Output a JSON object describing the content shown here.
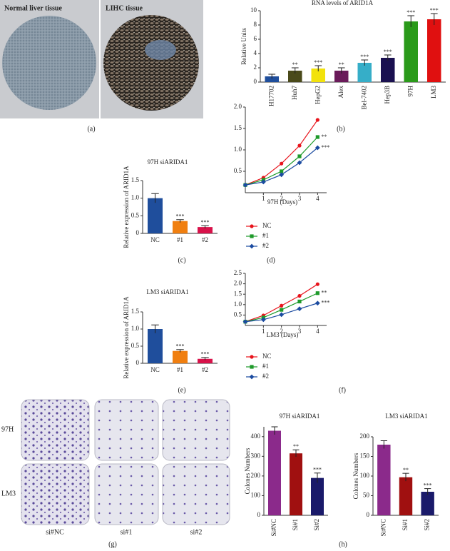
{
  "images": {
    "normal": "Normal liver tissue",
    "tumor": "LIHC tissue",
    "rows": [
      "97H",
      "LM3"
    ],
    "columns": [
      "si#NC",
      "si#1",
      "si#2"
    ]
  },
  "panel_labels": [
    "(a)",
    "(b)",
    "(c)",
    "(d)",
    "(e)",
    "(f)",
    "(g)",
    "(h)"
  ],
  "chart_data": [
    {
      "type": "bar",
      "title": "RNA levels of ARID1A",
      "y_label": "Relative Units",
      "categories": [
        "H17702",
        "Huh7",
        "HepG2",
        "Alex",
        "Bel-7402",
        "Hep3B",
        "97H",
        "LM3"
      ],
      "values": [
        0.8,
        1.6,
        1.9,
        1.6,
        2.7,
        3.4,
        8.5,
        8.8
      ],
      "errors": [
        0.3,
        0.4,
        0.4,
        0.4,
        0.4,
        0.4,
        0.8,
        0.8
      ],
      "colors": [
        "#1f4e9c",
        "#4a4a1a",
        "#f2e20c",
        "#6a1a5a",
        "#36aec8",
        "#1a1050",
        "#2a9a1a",
        "#e01010"
      ],
      "annotations": [
        null,
        "**",
        "***",
        "**",
        "***",
        "***",
        "***",
        "***"
      ],
      "ylim": [
        0,
        10
      ],
      "yticks": [
        0,
        2,
        4,
        6,
        8,
        10
      ]
    },
    {
      "type": "bar",
      "title": "97H siARIDA1",
      "y_label": "Relative expression of ARID1A",
      "categories": [
        "NC",
        "#1",
        "#2"
      ],
      "values": [
        1.0,
        0.35,
        0.18
      ],
      "errors": [
        0.13,
        0.04,
        0.04
      ],
      "colors": [
        "#1f4e9c",
        "#f07f10",
        "#d8124a"
      ],
      "annotations": [
        null,
        "***",
        "***"
      ],
      "ylim": [
        0,
        1.5
      ],
      "yticks": [
        0,
        0.5,
        {
          "value": 1,
          "label": "1.0"
        },
        1.5
      ]
    },
    {
      "type": "line",
      "x_label": "97H (Days)",
      "x": [
        0,
        1,
        2,
        3,
        4
      ],
      "xlim": [
        0,
        4.5
      ],
      "xticks": [
        1,
        2,
        3,
        4
      ],
      "ylim": [
        0,
        2
      ],
      "yticks": [
        0.5,
        {
          "value": 1,
          "label": "1.0"
        },
        1.5,
        {
          "value": 2,
          "label": "2.0"
        }
      ],
      "series": [
        {
          "name": "NC",
          "color": "#e8141c",
          "marker": "circle",
          "values": [
            0.18,
            0.35,
            0.68,
            1.1,
            1.7
          ]
        },
        {
          "name": "#1",
          "color": "#1e9a2a",
          "marker": "square",
          "values": [
            0.18,
            0.3,
            0.5,
            0.85,
            1.3
          ],
          "annotation": "**"
        },
        {
          "name": "#2",
          "color": "#1b4ba0",
          "marker": "diamond",
          "values": [
            0.18,
            0.25,
            0.42,
            0.7,
            1.05
          ],
          "annotation": "***"
        }
      ]
    },
    {
      "type": "bar",
      "title": "LM3 siARIDA1",
      "y_label": "Relative expression of ARID1A",
      "categories": [
        "NC",
        "#1",
        "#2"
      ],
      "values": [
        1.0,
        0.36,
        0.13
      ],
      "errors": [
        0.12,
        0.04,
        0.04
      ],
      "colors": [
        "#1f4e9c",
        "#f07f10",
        "#d8124a"
      ],
      "annotations": [
        null,
        "***",
        "***"
      ],
      "ylim": [
        0,
        1.5
      ],
      "yticks": [
        0,
        0.5,
        {
          "value": 1,
          "label": "1.0"
        },
        1.5
      ]
    },
    {
      "type": "line",
      "x_label": "LM3 (Days)",
      "x": [
        0,
        1,
        2,
        3,
        4
      ],
      "xlim": [
        0,
        4.5
      ],
      "xticks": [
        1,
        2,
        3,
        4
      ],
      "ylim": [
        0,
        2.5
      ],
      "yticks": [
        0.5,
        {
          "value": 1,
          "label": "1.0"
        },
        1.5,
        {
          "value": 2,
          "label": "2.0"
        },
        2.5
      ],
      "series": [
        {
          "name": "NC",
          "color": "#e8141c",
          "marker": "circle",
          "values": [
            0.18,
            0.48,
            0.95,
            1.42,
            1.98
          ]
        },
        {
          "name": "#1",
          "color": "#1e9a2a",
          "marker": "square",
          "values": [
            0.18,
            0.38,
            0.75,
            1.15,
            1.55
          ],
          "annotation": "**"
        },
        {
          "name": "#2",
          "color": "#1b4ba0",
          "marker": "diamond",
          "values": [
            0.18,
            0.28,
            0.52,
            0.8,
            1.07
          ],
          "annotation": "***"
        }
      ]
    },
    {
      "type": "bar",
      "title": "97H siARIDA1",
      "y_label": "Colones Numbers",
      "categories": [
        "Si#NC",
        "Si#1",
        "Si#2"
      ],
      "values": [
        430,
        315,
        190
      ],
      "errors": [
        20,
        18,
        25
      ],
      "colors": [
        "#8b2a8b",
        "#a01010",
        "#1a1a6a"
      ],
      "annotations": [
        null,
        "**",
        "***"
      ],
      "ylim": [
        0,
        450
      ],
      "yticks": [
        0,
        100,
        200,
        300,
        400
      ]
    },
    {
      "type": "bar",
      "title": "LM3 siARIDA1",
      "y_label": "Colones Numbers",
      "categories": [
        "Si#NC",
        "Si#1",
        "Si#2"
      ],
      "values": [
        180,
        97,
        60
      ],
      "errors": [
        10,
        10,
        8
      ],
      "colors": [
        "#8b2a8b",
        "#a01010",
        "#1a1a6a"
      ],
      "annotations": [
        null,
        "**",
        "***"
      ],
      "ylim": [
        0,
        200
      ],
      "yticks": [
        0,
        50,
        100,
        150,
        200
      ]
    }
  ]
}
